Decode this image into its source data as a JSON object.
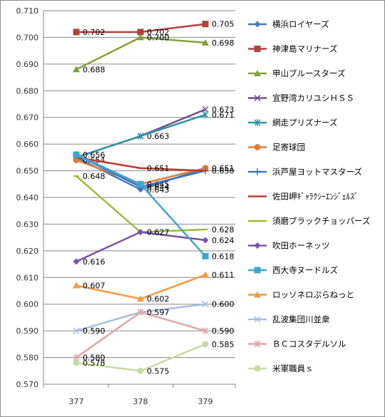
{
  "chart_data": {
    "type": "line",
    "x": [
      "377",
      "378",
      "379"
    ],
    "ylim": [
      0.57,
      0.71
    ],
    "yticks": [
      "0.570",
      "0.580",
      "0.590",
      "0.600",
      "0.610",
      "0.620",
      "0.630",
      "0.640",
      "0.650",
      "0.660",
      "0.670",
      "0.680",
      "0.690",
      "0.700",
      "0.710"
    ],
    "grid": true,
    "legend_position": "right",
    "series": [
      {
        "name": "横浜ロイヤーズ",
        "color": "#4a7ab5",
        "marker": "diamond",
        "values": [
          0.655,
          0.643,
          0.651
        ],
        "labels": [
          "",
          "0.643",
          "0.651"
        ]
      },
      {
        "name": "神津島マリナーズ",
        "color": "#b0413e",
        "marker": "square",
        "values": [
          0.702,
          0.702,
          0.705
        ],
        "labels": [
          "0.702",
          "0.702",
          "0.705"
        ]
      },
      {
        "name": "甲山ブルースターズ",
        "color": "#7fa23c",
        "marker": "triangle",
        "values": [
          0.688,
          0.7,
          0.698
        ],
        "labels": [
          "0.688",
          "0.700",
          "0.698"
        ]
      },
      {
        "name": "宜野湾カリユシＨＳＳ",
        "color": "#6d4f8f",
        "marker": "x",
        "values": [
          0.655,
          0.663,
          0.673
        ],
        "labels": [
          "",
          "0.663",
          "0.673"
        ]
      },
      {
        "name": "網走プリズナーズ",
        "color": "#2e94a8",
        "marker": "star",
        "values": [
          0.655,
          0.663,
          0.671
        ],
        "labels": [
          "",
          "",
          "0.671"
        ]
      },
      {
        "name": "足寄球団",
        "color": "#e07b39",
        "marker": "circle",
        "values": [
          0.654,
          0.645,
          0.651
        ],
        "labels": [
          "0.654",
          "0.645",
          ""
        ]
      },
      {
        "name": "浜芦屋ヨットマスターズ",
        "color": "#3b77c4",
        "marker": "plus",
        "values": [
          0.656,
          0.644,
          0.65
        ],
        "labels": [
          "0.656",
          "0.644",
          "0.650"
        ]
      },
      {
        "name": "佐田岬ｷﾞｬﾗｸｼｰｴﾝｼﾞｪﾙｽﾞ",
        "color": "#c0392b",
        "marker": "dash",
        "values": [
          0.655,
          0.651,
          0.65
        ],
        "labels": [
          "",
          "0.651",
          ""
        ]
      },
      {
        "name": "須磨ブラックチョッパーズ",
        "color": "#9bbb3c",
        "marker": "dash",
        "values": [
          0.648,
          0.627,
          0.628
        ],
        "labels": [
          "0.648",
          "",
          "0.628"
        ]
      },
      {
        "name": "吹田ホーネッツ",
        "color": "#7b52a8",
        "marker": "diamond",
        "values": [
          0.616,
          0.627,
          0.624
        ],
        "labels": [
          "0.616",
          "0.627",
          "0.624"
        ]
      },
      {
        "name": "西大寺ヌードルズ",
        "color": "#3fa6cf",
        "marker": "square",
        "values": [
          0.656,
          0.645,
          0.618
        ],
        "labels": [
          "",
          "",
          "0.618"
        ]
      },
      {
        "name": "ロッソネロぷらねっと",
        "color": "#f49a42",
        "marker": "triangle",
        "values": [
          0.607,
          0.602,
          0.611
        ],
        "labels": [
          "0.607",
          "0.602",
          "0.611"
        ]
      },
      {
        "name": "乱波集団川並衆",
        "color": "#a8bde0",
        "marker": "x",
        "values": [
          0.59,
          0.597,
          0.6
        ],
        "labels": [
          "0.590",
          "",
          "0.600"
        ]
      },
      {
        "name": "ＢＣコスタデルソル",
        "color": "#e2a6a6",
        "marker": "star",
        "values": [
          0.58,
          0.597,
          0.59
        ],
        "labels": [
          "0.580",
          "0.597",
          "0.590"
        ]
      },
      {
        "name": "米軍職員ｓ",
        "color": "#c5dba4",
        "marker": "circle",
        "values": [
          0.578,
          0.575,
          0.585
        ],
        "labels": [
          "0.578",
          "0.575",
          "0.585"
        ]
      }
    ]
  }
}
